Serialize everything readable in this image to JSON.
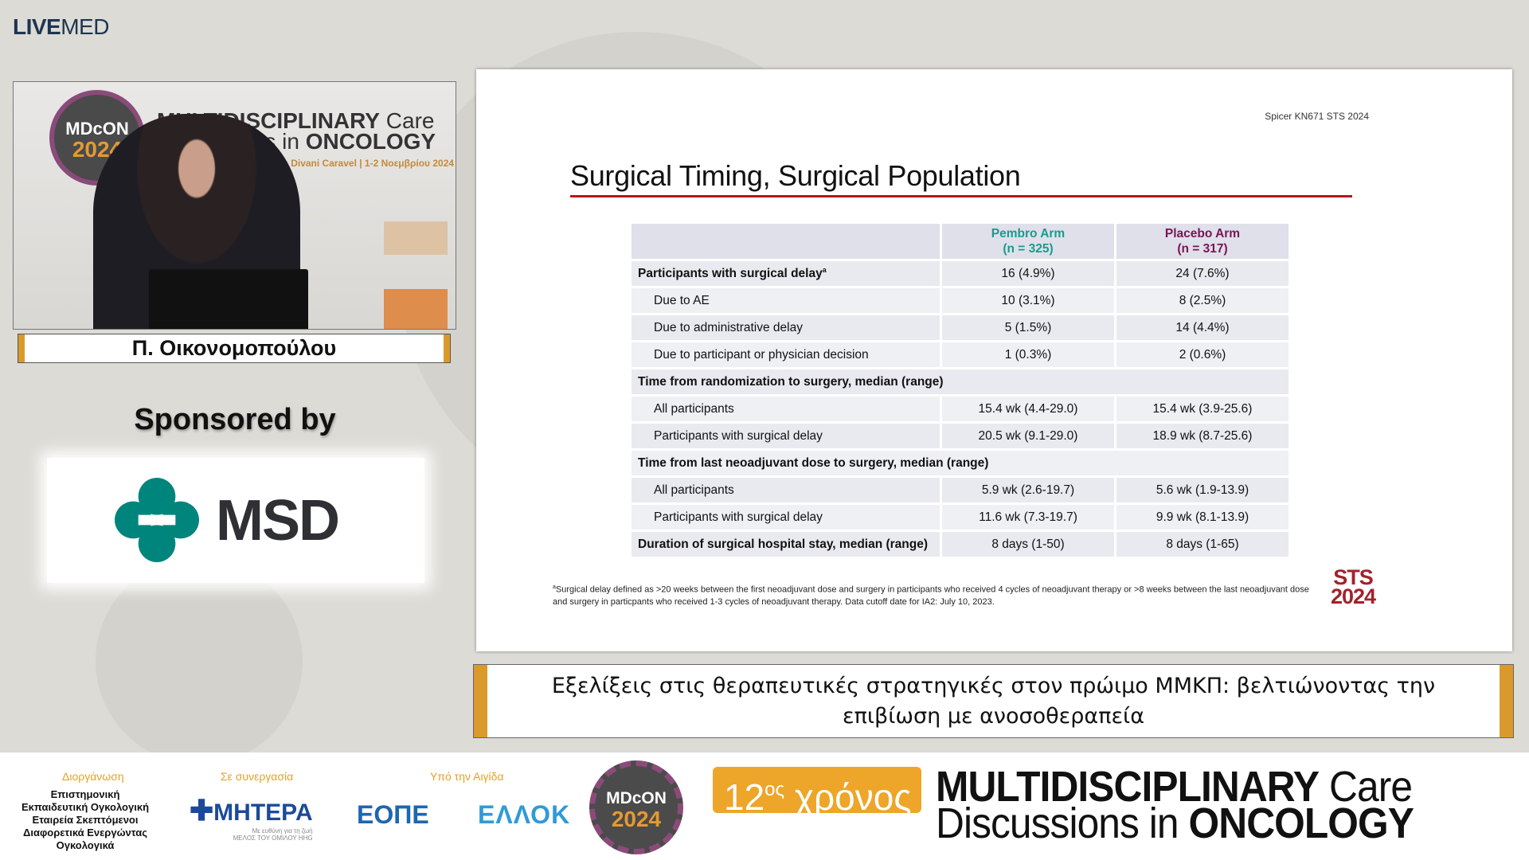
{
  "brand": {
    "live": "LIVE",
    "med": "MED"
  },
  "video": {
    "logo_top": "MDcON",
    "logo_year": "2024",
    "banner_line1_bold": "MULTIDISCIPLINARY",
    "banner_line1": " Care",
    "banner_line2": "Discussions in ",
    "banner_line2_bold": "ONCOLOGY",
    "banner_sub": "Ξενοδοχείο Divani Caravel | 1-2 Νοεμβρίου 2024"
  },
  "speaker": {
    "name": "Π. Οικονομοπούλου"
  },
  "sponsor": {
    "label": "Sponsored by",
    "logo_text": "MSD",
    "color": "#00857c"
  },
  "slide": {
    "reference": "Spicer KN671 STS 2024",
    "title": "Surgical Timing, Surgical Population",
    "accent_color": "#b4151c",
    "columns": [
      {
        "label": "Pembro Arm",
        "n": "(n = 325)",
        "color": "#1a9a8f"
      },
      {
        "label": "Placebo Arm",
        "n": "(n = 317)",
        "color": "#7a1457"
      }
    ],
    "rows": [
      {
        "label": "Participants with surgical delay",
        "sup": "a",
        "style": "bold",
        "pembro": "16 (4.9%)",
        "placebo": "24 (7.6%)"
      },
      {
        "label": "Due to AE",
        "style": "indent",
        "pembro": "10 (3.1%)",
        "placebo": "8 (2.5%)"
      },
      {
        "label": "Due to administrative delay",
        "style": "indent",
        "pembro": "5 (1.5%)",
        "placebo": "14 (4.4%)"
      },
      {
        "label": "Due to participant or physician decision",
        "style": "indent",
        "pembro": "1 (0.3%)",
        "placebo": "2 (0.6%)"
      },
      {
        "label": "Time from randomization to surgery, median (range)",
        "style": "section"
      },
      {
        "label": "All participants",
        "style": "indent",
        "pembro": "15.4 wk (4.4-29.0)",
        "placebo": "15.4 wk (3.9-25.6)"
      },
      {
        "label": "Participants with surgical delay",
        "style": "indent",
        "pembro": "20.5 wk (9.1-29.0)",
        "placebo": "18.9 wk (8.7-25.6)"
      },
      {
        "label": "Time from last neoadjuvant dose to surgery, median (range)",
        "style": "section"
      },
      {
        "label": "All participants",
        "style": "indent",
        "pembro": "5.9 wk (2.6-19.7)",
        "placebo": "5.6 wk (1.9-13.9)"
      },
      {
        "label": "Participants with surgical delay",
        "style": "indent",
        "pembro": "11.6 wk (7.3-19.7)",
        "placebo": "9.9 wk (8.1-13.9)"
      },
      {
        "label": "Duration of surgical hospital stay, median (range)",
        "style": "bold",
        "pembro": "8 days (1-50)",
        "placebo": "8 days (1-65)"
      }
    ],
    "footnote_sup": "a",
    "footnote": "Surgical delay defined as >20 weeks between the first neoadjuvant dose and surgery in participants who received 4 cycles of neoadjuvant therapy or >8 weeks between the last neoadjuvant dose and surgery in particpants who received 1-3 cycles of neoadjuvant therapy. Data cutoff date for IA2: July 10, 2023.",
    "logo_line1": "STS",
    "logo_line2": "2024"
  },
  "caption": "Εξελίξεις στις θεραπευτικές στρατηγικές στον πρώιμο ΜΜΚΠ: βελτιώνοντας την επιβίωση με ανοσοθεραπεία",
  "footer": {
    "organizer_label": "Διοργάνωση",
    "organizer": "Επιστημονική Εκπαιδευτική Ογκολογική Εταιρεία Σκεπτόμενοι Διαφορετικά Ενεργώντας Ογκολογικά",
    "partner_label": "Σε συνεργασία",
    "partner": "ΜΗΤΕΡΑ",
    "partner_tagline": "Με ευθύνη για τη ζωή",
    "partner_group": "ΜΕΛΟΣ ΤΟΥ ΟΜΙΛΟΥ HHG",
    "auspices_label": "Υπό την Αιγίδα",
    "auspices": [
      "ΕΟΠΕ",
      "ΕΛΛΟΚ"
    ],
    "event_logo_top": "MDcON",
    "event_logo_year": "2024",
    "years_num": "12",
    "years_sup": "ος",
    "years_word": " χρόνος",
    "event_line1_bold": "MULTIDISCIPLINARY",
    "event_line1": " Care",
    "event_line2": "Discussions in ",
    "event_line2_bold": "ONCOLOGY"
  }
}
